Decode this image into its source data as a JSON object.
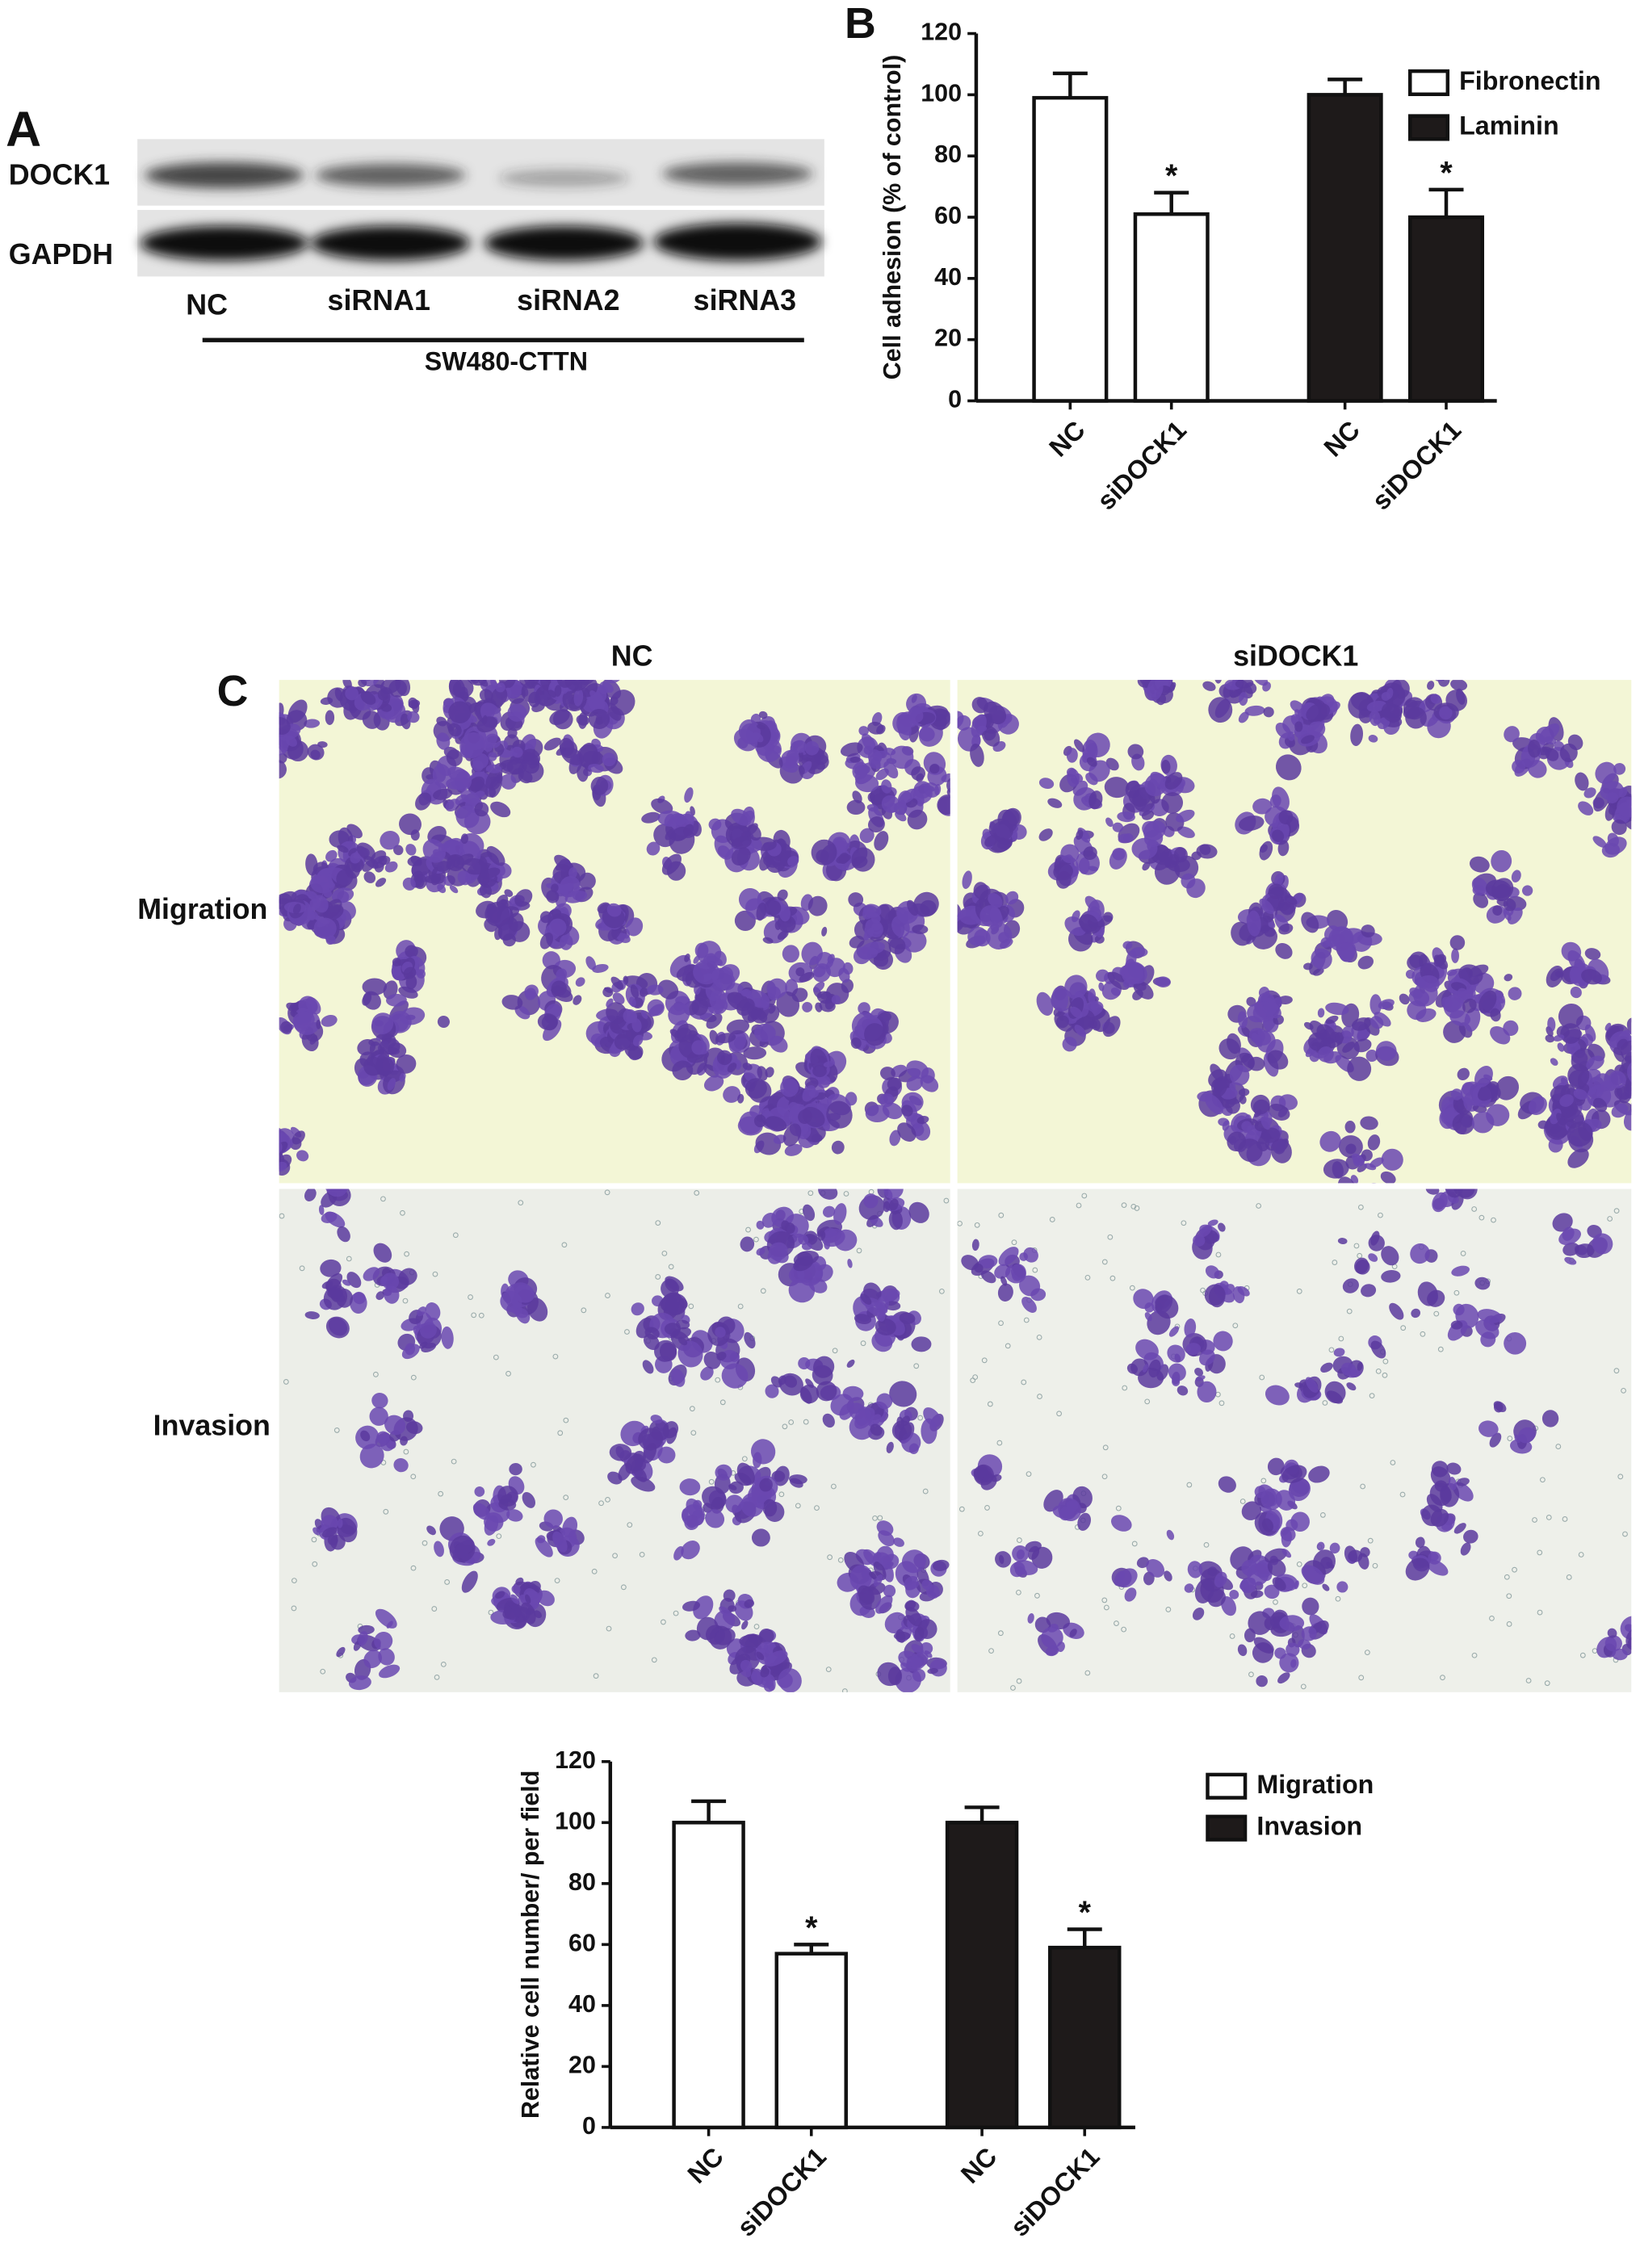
{
  "panel_labels": [
    "A",
    "B",
    "C"
  ],
  "western_blot": {
    "proteins": [
      "DOCK1",
      "GAPDH"
    ],
    "lanes": [
      "NC",
      "siRNA1",
      "siRNA2",
      "siRNA3"
    ],
    "cell_line": "SW480-CTTN"
  },
  "micrographs": {
    "columns": [
      "NC",
      "siDOCK1"
    ],
    "rows": [
      "Migration",
      "Invasion"
    ]
  },
  "chart_data": [
    {
      "type": "bar",
      "ylabel": "Cell adhesion (% of control)",
      "categories": [
        "NC",
        "siDOCK1",
        "NC",
        "siDOCK1"
      ],
      "series": [
        {
          "name": "Fibronectin",
          "color": "#ffffff",
          "values": [
            99,
            61,
            null,
            null
          ],
          "errors": [
            8,
            7,
            null,
            null
          ],
          "markers": [
            null,
            "*",
            null,
            null
          ]
        },
        {
          "name": "Laminin",
          "color": "#1e1a1a",
          "values": [
            null,
            null,
            100,
            60
          ],
          "errors": [
            null,
            null,
            5,
            9
          ],
          "markers": [
            null,
            null,
            null,
            "*"
          ]
        }
      ],
      "ylim": [
        0,
        120
      ],
      "yticks": [
        0,
        20,
        40,
        60,
        80,
        100,
        120
      ]
    },
    {
      "type": "bar",
      "ylabel": "Relative cell number/ per field",
      "categories": [
        "NC",
        "siDOCK1",
        "NC",
        "siDOCK1"
      ],
      "series": [
        {
          "name": "Migration",
          "color": "#ffffff",
          "values": [
            100,
            57,
            null,
            null
          ],
          "errors": [
            7,
            3,
            null,
            null
          ],
          "markers": [
            null,
            "*",
            null,
            null
          ]
        },
        {
          "name": "Invasion",
          "color": "#1e1a1a",
          "values": [
            null,
            null,
            100,
            59
          ],
          "errors": [
            null,
            null,
            5,
            6
          ],
          "markers": [
            null,
            null,
            null,
            "*"
          ]
        }
      ],
      "ylim": [
        0,
        120
      ],
      "yticks": [
        0,
        20,
        40,
        60,
        80,
        100,
        120
      ]
    }
  ]
}
